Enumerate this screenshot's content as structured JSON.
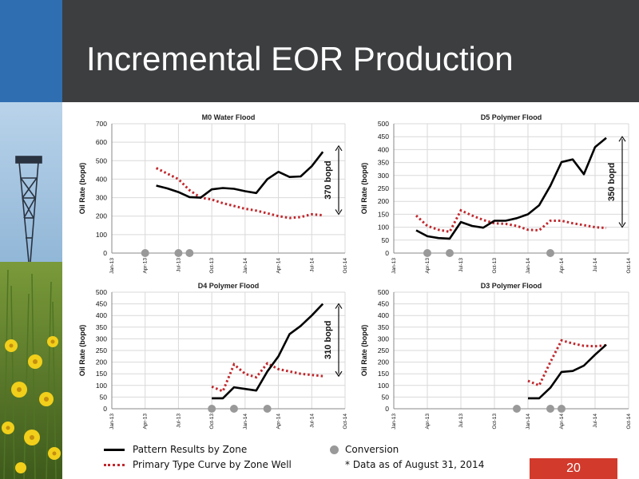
{
  "slide": {
    "title": "Incremental EOR Production",
    "page_number": "20",
    "footnote": "* Data as of August 31, 2014",
    "colors": {
      "header": "#3c3e40",
      "accent": "#2f6fb1",
      "pattern_line": "#000000",
      "type_curve": "#c0282d",
      "conversion_dot": "#999999",
      "page_badge": "#d23a2c"
    }
  },
  "legend": {
    "pattern": "Pattern Results by Zone",
    "type_curve": "Primary Type Curve by Zone Well",
    "conversion": "Conversion"
  },
  "chart_data": [
    {
      "type": "line",
      "title": "M0 Water Flood",
      "ylabel": "Oil Rate (bopd)",
      "ylim": [
        0,
        700
      ],
      "yticks": [
        0,
        100,
        200,
        300,
        400,
        500,
        600,
        700
      ],
      "xlim": [
        "Jan-13",
        "Oct-14"
      ],
      "xticks": [
        "Jan-13",
        "Apr-13",
        "Jul-13",
        "Oct-13",
        "Jan-14",
        "Apr-14",
        "Jul-14",
        "Oct-14"
      ],
      "grid": true,
      "annotation": "370 bopd",
      "annotation_span": [
        210,
        580
      ],
      "series": [
        {
          "name": "Pattern Results by Zone",
          "style": "solid",
          "x": [
            "2013-05",
            "2013-06",
            "2013-07",
            "2013-08",
            "2013-09",
            "2013-10",
            "2013-11",
            "2013-12",
            "2014-01",
            "2014-02",
            "2014-03",
            "2014-04",
            "2014-05",
            "2014-06",
            "2014-07",
            "2014-08"
          ],
          "y": [
            365,
            350,
            330,
            303,
            300,
            345,
            352,
            348,
            335,
            325,
            400,
            440,
            412,
            415,
            470,
            548
          ]
        },
        {
          "name": "Primary Type Curve by Zone Well",
          "style": "dotted",
          "x": [
            "2013-05",
            "2013-06",
            "2013-07",
            "2013-08",
            "2013-09",
            "2013-10",
            "2013-11",
            "2013-12",
            "2014-01",
            "2014-02",
            "2014-03",
            "2014-04",
            "2014-05",
            "2014-06",
            "2014-07",
            "2014-08"
          ],
          "y": [
            460,
            430,
            400,
            340,
            300,
            290,
            270,
            255,
            240,
            230,
            215,
            200,
            190,
            195,
            210,
            205
          ]
        }
      ],
      "conversions": [
        "2013-04",
        "2013-07",
        "2013-08"
      ]
    },
    {
      "type": "line",
      "title": "D5 Polymer Flood",
      "ylabel": "Oil Rate (bopd)",
      "ylim": [
        0,
        500
      ],
      "yticks": [
        0,
        50,
        100,
        150,
        200,
        250,
        300,
        350,
        400,
        450,
        500
      ],
      "xlim": [
        "Jan-13",
        "Oct-14"
      ],
      "xticks": [
        "Jan-13",
        "Apr-13",
        "Jul-13",
        "Oct-13",
        "Jan-14",
        "Apr-14",
        "Jul-14",
        "Oct-14"
      ],
      "grid": true,
      "annotation": "350 bopd",
      "annotation_span": [
        100,
        450
      ],
      "series": [
        {
          "name": "Pattern Results by Zone",
          "style": "solid",
          "x": [
            "2013-03",
            "2013-04",
            "2013-05",
            "2013-06",
            "2013-07",
            "2013-08",
            "2013-09",
            "2013-10",
            "2013-11",
            "2013-12",
            "2014-01",
            "2014-02",
            "2014-03",
            "2014-04",
            "2014-05",
            "2014-06",
            "2014-07",
            "2014-08"
          ],
          "y": [
            88,
            65,
            58,
            56,
            120,
            105,
            98,
            125,
            125,
            135,
            150,
            185,
            260,
            352,
            362,
            305,
            410,
            445
          ]
        },
        {
          "name": "Primary Type Curve by Zone Well",
          "style": "dotted",
          "x": [
            "2013-03",
            "2013-04",
            "2013-05",
            "2013-06",
            "2013-07",
            "2013-08",
            "2013-09",
            "2013-10",
            "2013-11",
            "2013-12",
            "2014-01",
            "2014-02",
            "2014-03",
            "2014-04",
            "2014-05",
            "2014-06",
            "2014-07",
            "2014-08"
          ],
          "y": [
            145,
            105,
            90,
            82,
            165,
            145,
            128,
            115,
            113,
            105,
            90,
            88,
            125,
            125,
            115,
            108,
            100,
            97
          ]
        }
      ],
      "conversions": [
        "2013-04",
        "2013-06",
        "2014-03"
      ]
    },
    {
      "type": "line",
      "title": "D4 Polymer Flood",
      "ylabel": "Oil Rate (bopd)",
      "ylim": [
        0,
        500
      ],
      "yticks": [
        0,
        50,
        100,
        150,
        200,
        250,
        300,
        350,
        400,
        450,
        500
      ],
      "xlim": [
        "Jan-13",
        "Oct-14"
      ],
      "xticks": [
        "Jan-13",
        "Apr-13",
        "Jul-13",
        "Oct-13",
        "Jan-14",
        "Apr-14",
        "Jul-14",
        "Oct-14"
      ],
      "grid": true,
      "annotation": "310 bopd",
      "annotation_span": [
        140,
        450
      ],
      "series": [
        {
          "name": "Pattern Results by Zone",
          "style": "solid",
          "x": [
            "2013-10",
            "2013-11",
            "2013-12",
            "2014-01",
            "2014-02",
            "2014-03",
            "2014-04",
            "2014-05",
            "2014-06",
            "2014-07",
            "2014-08"
          ],
          "y": [
            45,
            45,
            92,
            85,
            78,
            160,
            225,
            320,
            355,
            400,
            450
          ]
        },
        {
          "name": "Primary Type Curve by Zone Well",
          "style": "dotted",
          "x": [
            "2013-10",
            "2013-11",
            "2013-12",
            "2014-01",
            "2014-02",
            "2014-03",
            "2014-04",
            "2014-05",
            "2014-06",
            "2014-07",
            "2014-08"
          ],
          "y": [
            95,
            75,
            190,
            150,
            135,
            195,
            170,
            160,
            150,
            145,
            140
          ]
        }
      ],
      "conversions": [
        "2013-10",
        "2013-12",
        "2014-03"
      ]
    },
    {
      "type": "line",
      "title": "D3 Polymer Flood",
      "ylabel": "Oil Rate (bopd)",
      "ylim": [
        0,
        500
      ],
      "yticks": [
        0,
        50,
        100,
        150,
        200,
        250,
        300,
        350,
        400,
        450,
        500
      ],
      "xlim": [
        "Jan-13",
        "Oct-14"
      ],
      "xticks": [
        "Jan-13",
        "Apr-13",
        "Jul-13",
        "Oct-13",
        "Jan-14",
        "Apr-14",
        "Jul-14",
        "Oct-14"
      ],
      "grid": true,
      "series": [
        {
          "name": "Pattern Results by Zone",
          "style": "solid",
          "x": [
            "2014-01",
            "2014-02",
            "2014-03",
            "2014-04",
            "2014-05",
            "2014-06",
            "2014-07",
            "2014-08"
          ],
          "y": [
            45,
            45,
            90,
            158,
            162,
            185,
            232,
            275
          ]
        },
        {
          "name": "Primary Type Curve by Zone Well",
          "style": "dotted",
          "x": [
            "2014-01",
            "2014-02",
            "2014-03",
            "2014-04",
            "2014-05",
            "2014-06",
            "2014-07",
            "2014-08"
          ],
          "y": [
            120,
            100,
            200,
            293,
            280,
            270,
            268,
            272
          ]
        }
      ],
      "conversions": [
        "2013-12",
        "2014-03",
        "2014-04"
      ]
    }
  ]
}
